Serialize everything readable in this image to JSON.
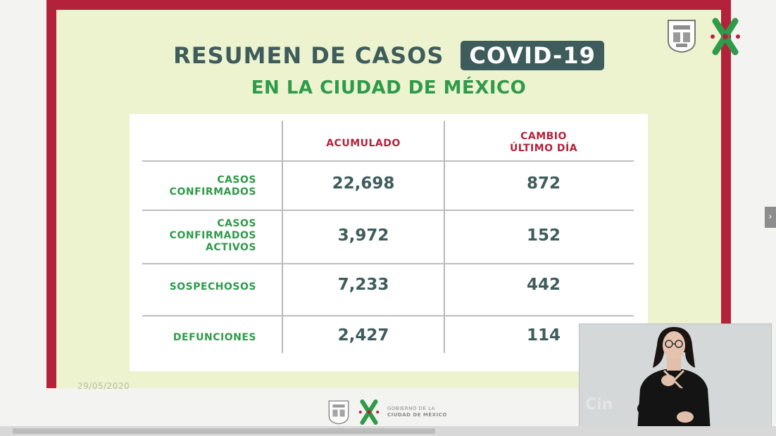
{
  "slide": {
    "title": "RESUMEN DE CASOS",
    "badge": "COVID-19",
    "subtitle": "EN LA CIUDAD DE MÉXICO",
    "date": "29/05/2020"
  },
  "table": {
    "headers": [
      "ACUMULADO",
      "CAMBIO\nÚLTIMO DÍA"
    ],
    "rows": [
      {
        "label": "CASOS\nCONFIRMADOS",
        "acumulado": "22,698",
        "cambio": "872"
      },
      {
        "label": "CASOS\nCONFIRMADOS\nACTIVOS",
        "acumulado": "3,972",
        "cambio": "152"
      },
      {
        "label": "SOSPECHOSOS",
        "acumulado": "7,233",
        "cambio": "442"
      },
      {
        "label": "DEFUNCIONES",
        "acumulado": "2,427",
        "cambio": "114"
      }
    ]
  },
  "footer": {
    "org_line1": "GOBIERNO DE LA",
    "org_line2": "CIUDAD DE MÉXICO"
  },
  "interpreter_watermark": "Cin",
  "colors": {
    "frame": "#b3223a",
    "slide_bg": "#edf3cf",
    "title": "#3f5c5c",
    "subtitle": "#2f9a4a",
    "header": "#b3223a"
  }
}
